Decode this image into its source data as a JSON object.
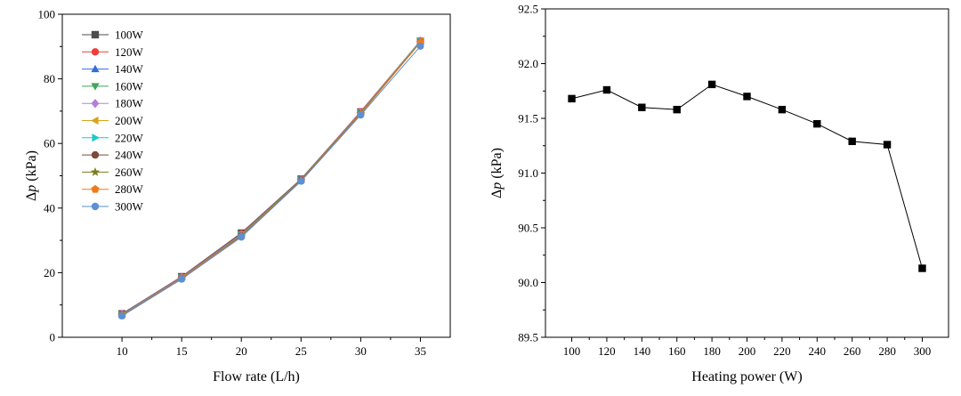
{
  "chart_data": [
    {
      "type": "line",
      "xlabel": "Flow rate (L/h)",
      "ylabel_symbol": "Δ",
      "ylabel_var": "p",
      "ylabel_unit": " (kPa)",
      "x": [
        10,
        15,
        20,
        25,
        30,
        35
      ],
      "xlim": [
        5,
        37.5
      ],
      "ylim": [
        0,
        100
      ],
      "xticks": [
        10,
        15,
        20,
        25,
        30,
        35
      ],
      "yticks": [
        0,
        20,
        40,
        60,
        80,
        100
      ],
      "legend_position": "top-left",
      "series": [
        {
          "name": "100W",
          "color": "#4d4d4d",
          "marker": "square",
          "values": [
            7.3,
            18.8,
            32.3,
            49.0,
            69.8,
            91.7
          ]
        },
        {
          "name": "120W",
          "color": "#f03c3c",
          "marker": "circle",
          "values": [
            7.2,
            18.7,
            32.1,
            48.9,
            69.9,
            91.8
          ]
        },
        {
          "name": "140W",
          "color": "#2f6fdc",
          "marker": "triangle-up",
          "values": [
            7.1,
            18.6,
            31.9,
            48.8,
            69.7,
            91.6
          ]
        },
        {
          "name": "160W",
          "color": "#3fa65a",
          "marker": "triangle-down",
          "values": [
            7.0,
            18.5,
            31.8,
            48.8,
            69.6,
            91.6
          ]
        },
        {
          "name": "180W",
          "color": "#b57edc",
          "marker": "diamond",
          "values": [
            7.0,
            18.5,
            31.7,
            48.7,
            69.6,
            91.8
          ]
        },
        {
          "name": "200W",
          "color": "#d9a21b",
          "marker": "triangle-left",
          "values": [
            6.9,
            18.4,
            31.6,
            48.7,
            69.5,
            91.7
          ]
        },
        {
          "name": "220W",
          "color": "#1fc9c9",
          "marker": "triangle-right",
          "values": [
            6.9,
            18.3,
            31.5,
            48.6,
            69.4,
            91.6
          ]
        },
        {
          "name": "240W",
          "color": "#7a4b3a",
          "marker": "circle",
          "values": [
            6.8,
            18.3,
            31.4,
            48.6,
            69.3,
            91.4
          ]
        },
        {
          "name": "260W",
          "color": "#7d7d1f",
          "marker": "star",
          "values": [
            6.8,
            18.2,
            31.3,
            48.5,
            69.2,
            91.3
          ]
        },
        {
          "name": "280W",
          "color": "#f07a1a",
          "marker": "pentagon",
          "values": [
            6.7,
            18.2,
            31.2,
            48.4,
            69.1,
            91.3
          ]
        },
        {
          "name": "300W",
          "color": "#5b8fd6",
          "marker": "circle",
          "values": [
            6.6,
            18.0,
            31.0,
            48.3,
            68.8,
            90.1
          ]
        }
      ]
    },
    {
      "type": "line",
      "xlabel": "Heating power (W)",
      "ylabel_symbol": "Δ",
      "ylabel_var": "p",
      "ylabel_unit": " (kPa)",
      "x": [
        100,
        120,
        140,
        160,
        180,
        200,
        220,
        240,
        260,
        280,
        300
      ],
      "xlim": [
        85,
        315
      ],
      "ylim": [
        89.5,
        92.5
      ],
      "xticks": [
        100,
        120,
        140,
        160,
        180,
        200,
        220,
        240,
        260,
        280,
        300
      ],
      "yticks": [
        89.5,
        90.0,
        90.5,
        91.0,
        91.5,
        92.0,
        92.5
      ],
      "series": [
        {
          "name": "Δp",
          "color": "#000000",
          "marker": "square",
          "values": [
            91.68,
            91.76,
            91.6,
            91.58,
            91.81,
            91.7,
            91.58,
            91.45,
            91.29,
            91.26,
            90.13
          ]
        }
      ]
    }
  ]
}
